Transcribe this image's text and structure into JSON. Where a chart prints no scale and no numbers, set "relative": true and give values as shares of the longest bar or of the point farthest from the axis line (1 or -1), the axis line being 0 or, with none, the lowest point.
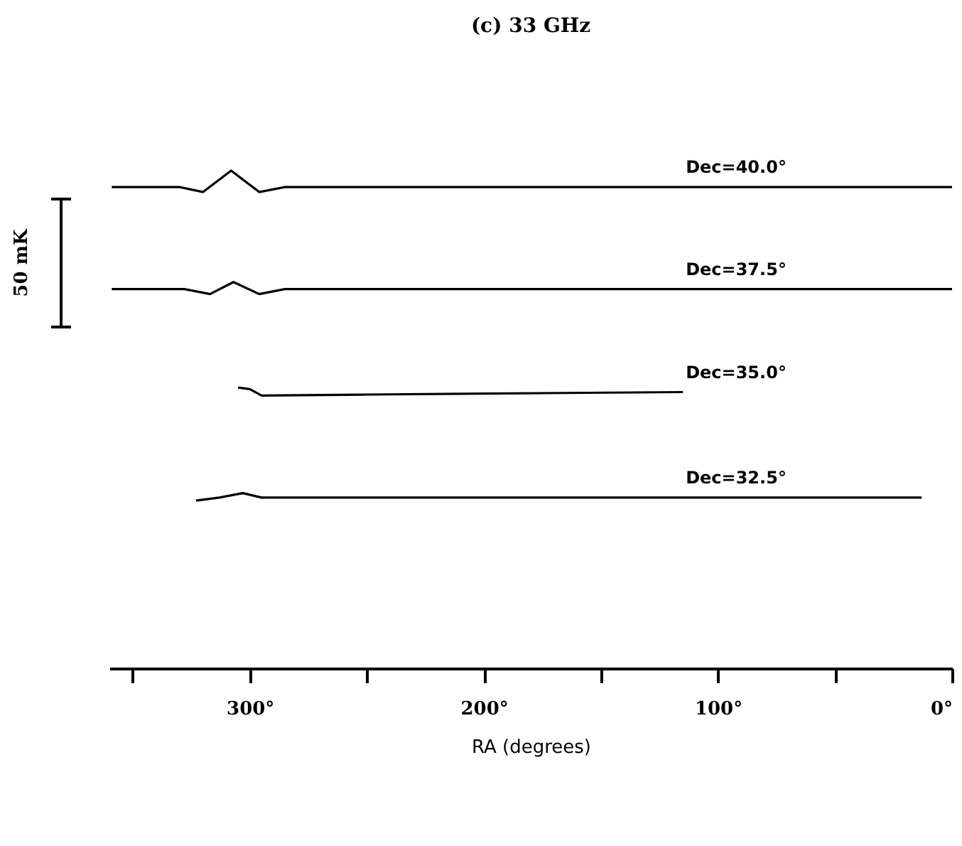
{
  "chart_data": {
    "type": "line",
    "title": "(c) 33 GHz",
    "xlabel": "RA (degrees)",
    "relative": true,
    "grid": false,
    "marker": "none",
    "line_style": "solid",
    "xlim": [
      360,
      0
    ],
    "xticks": [
      {
        "value": 350,
        "label": null
      },
      {
        "value": 300,
        "label": "300°"
      },
      {
        "value": 250,
        "label": null
      },
      {
        "value": 200,
        "label": "200°"
      },
      {
        "value": 150,
        "label": null
      },
      {
        "value": 100,
        "label": "100°"
      },
      {
        "value": 50,
        "label": null
      },
      {
        "value": 0,
        "label": "0°"
      }
    ],
    "annotations": [
      "50 mK"
    ],
    "series": [
      {
        "name": "Dec=40.0°",
        "color": "#000000",
        "x": [
          359,
          330,
          320,
          308,
          296,
          285,
          200,
          100,
          0
        ],
        "values": [
          0.967,
          0.967,
          0.957,
          1.0,
          0.957,
          0.967,
          0.967,
          0.967,
          0.967
        ]
      },
      {
        "name": "Dec=37.5°",
        "color": "#000000",
        "x": [
          359,
          328,
          317,
          307,
          296,
          285,
          200,
          100,
          0
        ],
        "values": [
          0.762,
          0.762,
          0.752,
          0.776,
          0.752,
          0.762,
          0.762,
          0.762,
          0.762
        ]
      },
      {
        "name": "Dec=35.0°",
        "color": "#000000",
        "x": [
          305,
          300,
          295,
          250,
          200,
          115
        ],
        "values": [
          0.564,
          0.561,
          0.548,
          0.55,
          0.552,
          0.555
        ]
      },
      {
        "name": "Dec=32.5°",
        "color": "#000000",
        "x": [
          323,
          313,
          303,
          295,
          250,
          150,
          13
        ],
        "values": [
          0.337,
          0.343,
          0.352,
          0.343,
          0.343,
          0.343,
          0.343
        ]
      }
    ]
  }
}
